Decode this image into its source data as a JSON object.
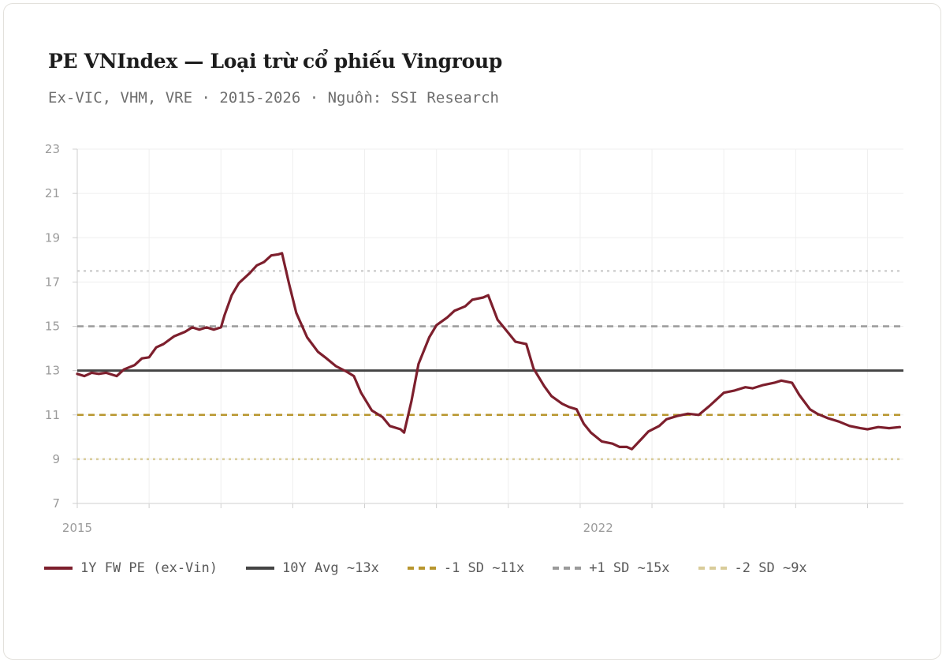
{
  "header": {
    "title": "PE VNIndex — Loại trừ cổ phiếu Vingroup",
    "subtitle": "Ex-VIC, VHM, VRE · 2015-2026 · Nguồn: SSI Research"
  },
  "legend": [
    {
      "key": "pe",
      "label": "1Y FW PE (ex-Vin)",
      "color": "#7d1f2d",
      "style": "solid"
    },
    {
      "key": "avg",
      "label": "10Y Avg ~13x",
      "color": "#444444",
      "style": "solid"
    },
    {
      "key": "m1sd",
      "label": "-1 SD ~11x",
      "color": "#b8962e",
      "style": "dashed"
    },
    {
      "key": "p1sd",
      "label": "+1 SD ~15x",
      "color": "#9a9a9a",
      "style": "dashed"
    },
    {
      "key": "m2sd",
      "label": "-2 SD ~9x",
      "color": "#d9cc9a",
      "style": "dashed"
    }
  ],
  "chart_data": {
    "type": "line",
    "title": "PE VNIndex — Loại trừ cổ phiếu Vingroup",
    "xlim": [
      2015.0,
      2026.5
    ],
    "ylim": [
      7,
      23
    ],
    "y_ticks": [
      7,
      9,
      11,
      13,
      15,
      17,
      19,
      21,
      23
    ],
    "x_ticks": [
      {
        "value": 2015.0,
        "label": "2015"
      },
      {
        "value": 2022.25,
        "label": "2022"
      }
    ],
    "grid": true,
    "legend_position": "bottom",
    "reference_lines": [
      {
        "name": "10Y Avg ~13x",
        "y": 13,
        "color": "#444444",
        "style": "solid"
      },
      {
        "name": "-1 SD ~11x",
        "y": 11,
        "color": "#b8962e",
        "style": "dashed"
      },
      {
        "name": "+1 SD ~15x",
        "y": 15,
        "color": "#9a9a9a",
        "style": "dashed"
      },
      {
        "name": "-2 SD ~9x",
        "y": 9,
        "color": "#d9cc9a",
        "style": "dotted"
      },
      {
        "name": "",
        "y": 17.5,
        "color": "#cfcfcf",
        "style": "dotted"
      }
    ],
    "series": [
      {
        "name": "1Y FW PE (ex-Vin)",
        "color": "#7d1f2d",
        "points": [
          [
            2015.0,
            12.85
          ],
          [
            2015.1,
            12.75
          ],
          [
            2015.2,
            12.9
          ],
          [
            2015.3,
            12.85
          ],
          [
            2015.4,
            12.9
          ],
          [
            2015.55,
            12.75
          ],
          [
            2015.65,
            13.05
          ],
          [
            2015.8,
            13.25
          ],
          [
            2015.9,
            13.55
          ],
          [
            2016.0,
            13.6
          ],
          [
            2016.1,
            14.05
          ],
          [
            2016.2,
            14.2
          ],
          [
            2016.35,
            14.55
          ],
          [
            2016.5,
            14.75
          ],
          [
            2016.6,
            14.95
          ],
          [
            2016.7,
            14.85
          ],
          [
            2016.8,
            14.95
          ],
          [
            2016.9,
            14.85
          ],
          [
            2017.0,
            14.95
          ],
          [
            2017.05,
            15.5
          ],
          [
            2017.15,
            16.4
          ],
          [
            2017.25,
            16.95
          ],
          [
            2017.4,
            17.4
          ],
          [
            2017.5,
            17.75
          ],
          [
            2017.6,
            17.9
          ],
          [
            2017.7,
            18.2
          ],
          [
            2017.8,
            18.25
          ],
          [
            2017.85,
            18.3
          ],
          [
            2017.95,
            16.9
          ],
          [
            2018.05,
            15.6
          ],
          [
            2018.2,
            14.5
          ],
          [
            2018.35,
            13.85
          ],
          [
            2018.45,
            13.6
          ],
          [
            2018.6,
            13.2
          ],
          [
            2018.75,
            12.95
          ],
          [
            2018.85,
            12.75
          ],
          [
            2018.95,
            12.0
          ],
          [
            2019.1,
            11.2
          ],
          [
            2019.25,
            10.9
          ],
          [
            2019.35,
            10.5
          ],
          [
            2019.5,
            10.35
          ],
          [
            2019.55,
            10.2
          ],
          [
            2019.65,
            11.6
          ],
          [
            2019.75,
            13.3
          ],
          [
            2019.9,
            14.5
          ],
          [
            2020.0,
            15.05
          ],
          [
            2020.15,
            15.4
          ],
          [
            2020.25,
            15.7
          ],
          [
            2020.4,
            15.9
          ],
          [
            2020.5,
            16.2
          ],
          [
            2020.65,
            16.3
          ],
          [
            2020.72,
            16.4
          ],
          [
            2020.85,
            15.3
          ],
          [
            2021.0,
            14.7
          ],
          [
            2021.1,
            14.3
          ],
          [
            2021.25,
            14.2
          ],
          [
            2021.35,
            13.1
          ],
          [
            2021.5,
            12.3
          ],
          [
            2021.6,
            11.85
          ],
          [
            2021.75,
            11.5
          ],
          [
            2021.85,
            11.35
          ],
          [
            2021.95,
            11.25
          ],
          [
            2022.05,
            10.6
          ],
          [
            2022.15,
            10.2
          ],
          [
            2022.3,
            9.8
          ],
          [
            2022.45,
            9.7
          ],
          [
            2022.55,
            9.55
          ],
          [
            2022.65,
            9.55
          ],
          [
            2022.72,
            9.45
          ],
          [
            2022.85,
            9.9
          ],
          [
            2022.95,
            10.25
          ],
          [
            2023.1,
            10.5
          ],
          [
            2023.2,
            10.8
          ],
          [
            2023.35,
            10.95
          ],
          [
            2023.5,
            11.05
          ],
          [
            2023.65,
            11.0
          ],
          [
            2023.8,
            11.4
          ],
          [
            2023.9,
            11.7
          ],
          [
            2024.0,
            12.0
          ],
          [
            2024.15,
            12.1
          ],
          [
            2024.3,
            12.25
          ],
          [
            2024.4,
            12.2
          ],
          [
            2024.55,
            12.35
          ],
          [
            2024.7,
            12.45
          ],
          [
            2024.8,
            12.55
          ],
          [
            2024.95,
            12.45
          ],
          [
            2025.05,
            11.9
          ],
          [
            2025.2,
            11.25
          ],
          [
            2025.3,
            11.05
          ],
          [
            2025.45,
            10.85
          ],
          [
            2025.6,
            10.7
          ],
          [
            2025.75,
            10.5
          ],
          [
            2025.9,
            10.4
          ],
          [
            2026.0,
            10.35
          ],
          [
            2026.15,
            10.45
          ],
          [
            2026.3,
            10.4
          ],
          [
            2026.45,
            10.45
          ]
        ]
      }
    ]
  }
}
